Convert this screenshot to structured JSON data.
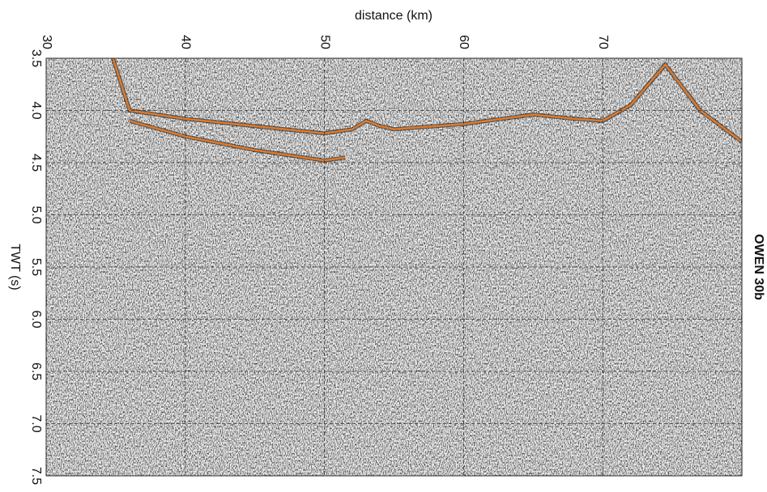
{
  "chart_data": {
    "type": "seismic",
    "title": "OWEN 30b",
    "x_label": "distance (km)",
    "y_label": "TWT (s)",
    "xlim": [
      30,
      80
    ],
    "ylim": [
      3.5,
      7.5
    ],
    "xticks": [
      30,
      40,
      50,
      60,
      70
    ],
    "yticks": [
      3.5,
      {
        "value": 4,
        "label": "4.0"
      },
      4.5,
      {
        "value": 5,
        "label": "5.0"
      },
      5.5,
      {
        "value": 6,
        "label": "6.0"
      },
      6.5,
      {
        "value": 7,
        "label": "7.0"
      },
      7.5
    ],
    "grid": true,
    "series": [
      {
        "color": "#e07a2a",
        "x": [
          34.8,
          36,
          40,
          45,
          50,
          52,
          53,
          54,
          55,
          60,
          65,
          68,
          70,
          72,
          74.5,
          77,
          80
        ],
        "values": [
          3.5,
          4.0,
          4.08,
          4.15,
          4.22,
          4.18,
          4.1,
          4.15,
          4.18,
          4.13,
          4.04,
          4.08,
          4.1,
          3.95,
          3.56,
          4.0,
          4.3
        ]
      },
      {
        "color": "#e07a2a",
        "x": [
          36,
          40,
          45,
          50,
          51.5
        ],
        "values": [
          4.1,
          4.25,
          4.38,
          4.48,
          4.45
        ]
      }
    ]
  }
}
